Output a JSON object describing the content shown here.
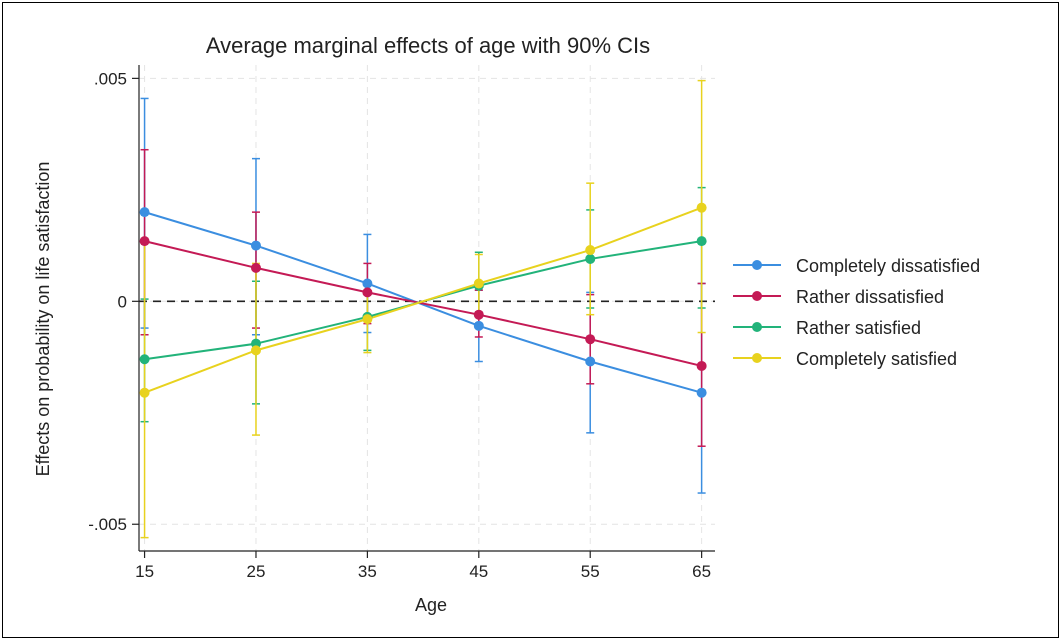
{
  "chart_data": {
    "type": "line",
    "title": "Average marginal effects of age with 90% CIs",
    "xlabel": "Age",
    "ylabel": "Effects on probability on life satisfaction",
    "x": [
      15,
      25,
      35,
      45,
      55,
      65
    ],
    "xlim": [
      14.5,
      66.2
    ],
    "ylim": [
      -0.0056,
      0.0053
    ],
    "y_ticks": [
      {
        "value": -0.005,
        "label": "-.005"
      },
      {
        "value": 0,
        "label": "0"
      },
      {
        "value": 0.005,
        "label": ".005"
      }
    ],
    "x_ticks": [
      {
        "value": 15,
        "label": "15"
      },
      {
        "value": 25,
        "label": "25"
      },
      {
        "value": 35,
        "label": "35"
      },
      {
        "value": 45,
        "label": "45"
      },
      {
        "value": 55,
        "label": "55"
      },
      {
        "value": 65,
        "label": "65"
      }
    ],
    "grid": true,
    "reference_line": 0,
    "legend_position": "right",
    "series": [
      {
        "name": "Completely dissatisfied",
        "color": "#3b8ee0",
        "values": [
          0.002,
          0.00125,
          0.0004,
          -0.00055,
          -0.00135,
          -0.00205
        ],
        "ci_low": [
          -0.0006,
          -0.00075,
          -0.0007,
          -0.00135,
          -0.00295,
          -0.0043
        ],
        "ci_high": [
          0.00455,
          0.0032,
          0.0015,
          0.00025,
          0.0002,
          0.0004
        ]
      },
      {
        "name": "Rather dissatisfied",
        "color": "#c41a55",
        "values": [
          0.00135,
          0.00075,
          0.0002,
          -0.0003,
          -0.00085,
          -0.00145
        ],
        "ci_low": [
          -0.00075,
          -0.0006,
          -0.0005,
          -0.0008,
          -0.00185,
          -0.00325
        ],
        "ci_high": [
          0.0034,
          0.002,
          0.00085,
          0.00025,
          0.00015,
          0.0004
        ]
      },
      {
        "name": "Rather satisfied",
        "color": "#22b37a",
        "values": [
          -0.0013,
          -0.00095,
          -0.00035,
          0.00035,
          0.00095,
          0.00135
        ],
        "ci_low": [
          -0.0027,
          -0.0023,
          -0.0011,
          -0.00035,
          -0.00015,
          -0.00015
        ],
        "ci_high": [
          5e-05,
          0.00045,
          0.0004,
          0.0011,
          0.00205,
          0.00255
        ]
      },
      {
        "name": "Completely satisfied",
        "color": "#e8d21e",
        "values": [
          -0.00205,
          -0.0011,
          -0.0004,
          0.0004,
          0.00115,
          0.0021
        ],
        "ci_low": [
          -0.0053,
          -0.003,
          -0.00115,
          -0.0003,
          -0.0003,
          -0.0007
        ],
        "ci_high": [
          0.00135,
          0.00085,
          0.00035,
          0.00105,
          0.00265,
          0.00495
        ]
      }
    ]
  }
}
